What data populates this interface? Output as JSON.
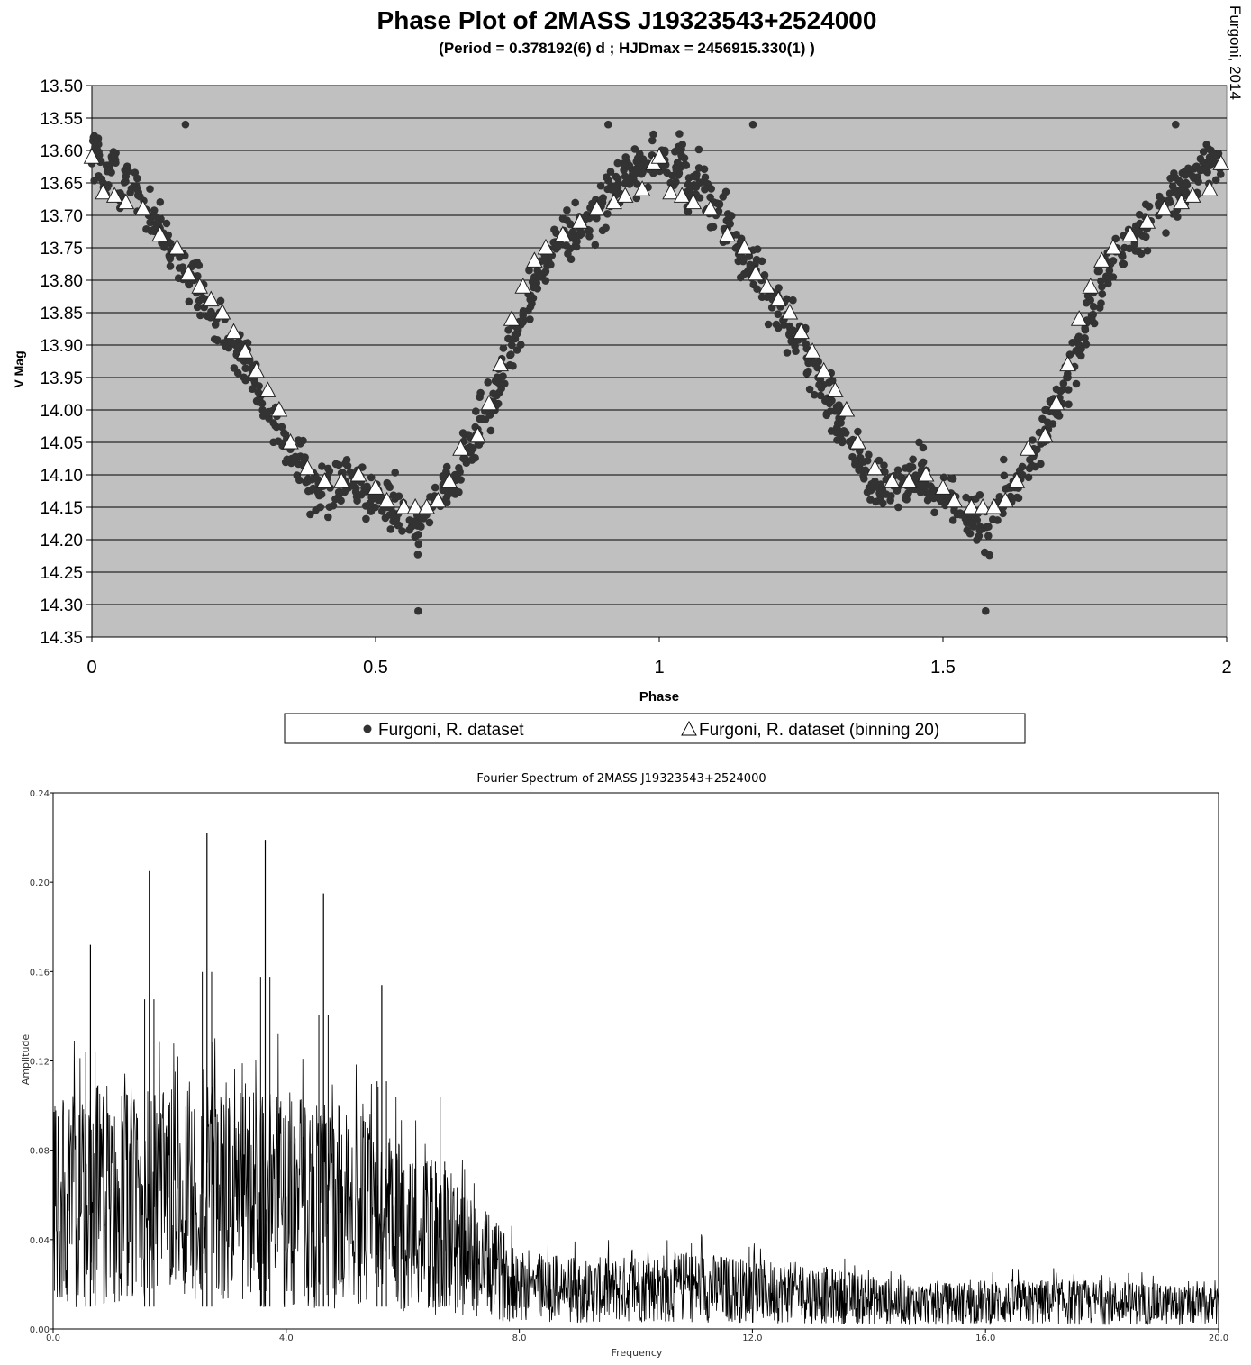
{
  "credit": "Furgoni, 2014",
  "chart_data": [
    {
      "type": "scatter",
      "title": "Phase Plot of 2MASS J19323543+2524000",
      "subtitle": "(Period = 0.378192(6) d ; HJDmax = 2456915.330(1) )",
      "xlabel": "Phase",
      "ylabel": "V Mag",
      "xlim": [
        0,
        2
      ],
      "ylim": [
        13.5,
        14.35
      ],
      "y_inverted": true,
      "grid": true,
      "plot_bg": "#c0c0c0",
      "legend_position": "bottom",
      "x_ticks": [
        "0",
        "0.5",
        "1",
        "1.5",
        "2"
      ],
      "x_tick_values": [
        0,
        0.5,
        1,
        1.5,
        2
      ],
      "y_ticks": [
        "13.50",
        "13.55",
        "13.60",
        "13.65",
        "13.70",
        "13.75",
        "13.80",
        "13.85",
        "13.90",
        "13.95",
        "14.00",
        "14.05",
        "14.10",
        "14.15",
        "14.20",
        "14.25",
        "14.30",
        "14.35"
      ],
      "y_tick_values": [
        13.5,
        13.55,
        13.6,
        13.65,
        13.7,
        13.75,
        13.8,
        13.85,
        13.9,
        13.95,
        14.0,
        14.05,
        14.1,
        14.15,
        14.2,
        14.25,
        14.3,
        14.35
      ],
      "series": [
        {
          "name": "Furgoni, R. dataset",
          "marker": "filled-circle",
          "color": "#333333",
          "x": [
            0.0,
            0.01,
            0.02,
            0.03,
            0.04,
            0.05,
            0.06,
            0.08,
            0.1,
            0.12,
            0.14,
            0.16,
            0.18,
            0.2,
            0.22,
            0.24,
            0.26,
            0.28,
            0.3,
            0.32,
            0.34,
            0.36,
            0.38,
            0.4,
            0.42,
            0.44,
            0.46,
            0.48,
            0.5,
            0.52,
            0.54,
            0.56,
            0.58,
            0.6,
            0.62,
            0.64,
            0.66,
            0.68,
            0.7,
            0.72,
            0.74,
            0.76,
            0.78,
            0.8,
            0.82,
            0.84,
            0.86,
            0.88,
            0.9,
            0.92,
            0.94,
            0.96,
            0.98,
            0.165,
            0.575,
            0.91
          ],
          "y": [
            13.62,
            13.6,
            13.65,
            13.63,
            13.61,
            13.67,
            13.64,
            13.66,
            13.7,
            13.72,
            13.76,
            13.78,
            13.8,
            13.83,
            13.86,
            13.89,
            13.92,
            13.95,
            13.99,
            14.02,
            14.05,
            14.08,
            14.11,
            14.13,
            14.12,
            14.11,
            14.1,
            14.12,
            14.13,
            14.15,
            14.16,
            14.17,
            14.18,
            14.15,
            14.12,
            14.1,
            14.06,
            14.03,
            13.99,
            13.95,
            13.9,
            13.86,
            13.81,
            13.77,
            13.75,
            13.73,
            13.72,
            13.7,
            13.68,
            13.66,
            13.64,
            13.63,
            13.62,
            13.56,
            14.31,
            13.56
          ]
        },
        {
          "name": "Furgoni, R. dataset (binning 20)",
          "marker": "open-triangle",
          "color": "#ffffff",
          "x": [
            0.0,
            0.02,
            0.04,
            0.06,
            0.09,
            0.12,
            0.15,
            0.17,
            0.19,
            0.21,
            0.23,
            0.25,
            0.27,
            0.29,
            0.31,
            0.33,
            0.35,
            0.38,
            0.41,
            0.44,
            0.47,
            0.5,
            0.52,
            0.55,
            0.57,
            0.59,
            0.61,
            0.63,
            0.65,
            0.68,
            0.7,
            0.72,
            0.74,
            0.76,
            0.78,
            0.8,
            0.83,
            0.86,
            0.89,
            0.92,
            0.94,
            0.97,
            0.99
          ],
          "y": [
            13.61,
            13.665,
            13.67,
            13.68,
            13.69,
            13.73,
            13.75,
            13.79,
            13.81,
            13.83,
            13.85,
            13.88,
            13.91,
            13.94,
            13.97,
            14.0,
            14.05,
            14.09,
            14.11,
            14.11,
            14.1,
            14.12,
            14.14,
            14.15,
            14.15,
            14.15,
            14.14,
            14.11,
            14.06,
            14.04,
            13.99,
            13.93,
            13.86,
            13.81,
            13.77,
            13.75,
            13.73,
            13.71,
            13.69,
            13.68,
            13.67,
            13.66,
            13.62
          ]
        }
      ]
    },
    {
      "type": "line",
      "title": "Fourier Spectrum of  2MASS J19323543+2524000",
      "xlabel": "Frequency",
      "ylabel": "Amplitude",
      "xlim": [
        0,
        20
      ],
      "ylim": [
        0,
        0.24
      ],
      "grid": false,
      "x_ticks": [
        "0.0",
        "4.0",
        "8.0",
        "12.0",
        "16.0",
        "20.0"
      ],
      "x_tick_values": [
        0,
        4,
        8,
        12,
        16,
        20
      ],
      "y_ticks": [
        "0.00",
        "0.04",
        "0.08",
        "0.12",
        "0.16",
        "0.20",
        "0.24"
      ],
      "y_tick_values": [
        0,
        0.04,
        0.08,
        0.12,
        0.16,
        0.2,
        0.24
      ],
      "peaks": {
        "x": [
          0.64,
          1.65,
          2.64,
          3.64,
          4.64,
          5.64,
          6.64
        ],
        "y": [
          0.172,
          0.205,
          0.222,
          0.219,
          0.195,
          0.154,
          0.104
        ]
      },
      "envelope": {
        "x": [
          0.0,
          1.0,
          2.0,
          3.0,
          4.0,
          5.0,
          6.0,
          7.0,
          8.0,
          9.0,
          10.0,
          11.0,
          12.0,
          13.0,
          14.0,
          15.0,
          16.0,
          17.0,
          18.0,
          19.0,
          20.0
        ],
        "y": [
          0.055,
          0.06,
          0.058,
          0.06,
          0.058,
          0.055,
          0.045,
          0.035,
          0.02,
          0.017,
          0.018,
          0.019,
          0.017,
          0.016,
          0.013,
          0.011,
          0.012,
          0.012,
          0.012,
          0.011,
          0.01
        ]
      }
    }
  ]
}
